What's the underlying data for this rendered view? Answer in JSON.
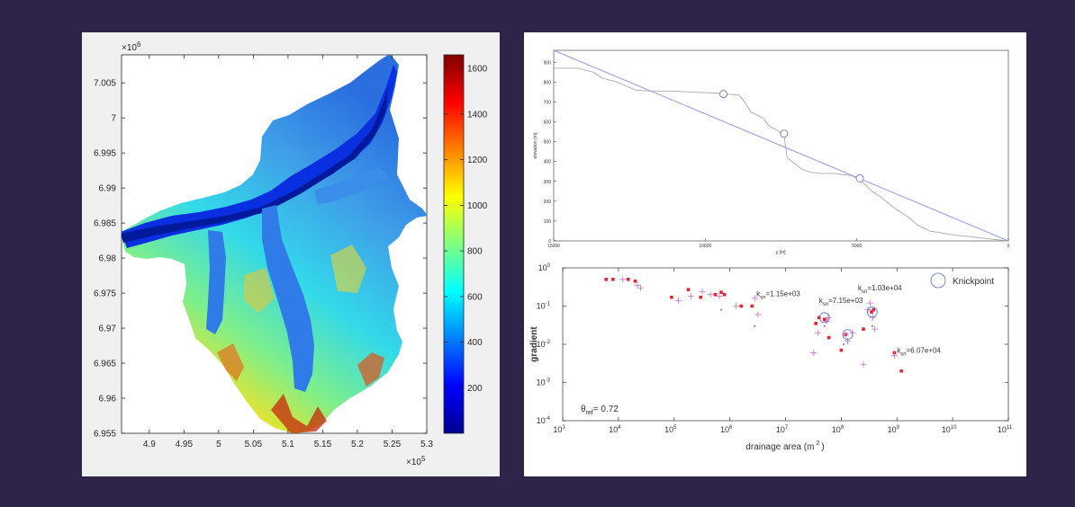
{
  "chart_data": [
    {
      "type": "heatmap",
      "x_exponent_label": "×10",
      "x_exponent": "5",
      "y_exponent_label": "×10",
      "y_exponent": "6",
      "x_ticks": [
        "4.9",
        "4.95",
        "5",
        "5.05",
        "5.1",
        "5.15",
        "5.2",
        "5.25",
        "5.3"
      ],
      "x_tick_values": [
        4.9,
        4.95,
        5.0,
        5.05,
        5.1,
        5.15,
        5.2,
        5.25,
        5.3
      ],
      "xlim": [
        4.86,
        5.3
      ],
      "y_ticks": [
        "7.005",
        "7",
        "6.995",
        "6.99",
        "6.985",
        "6.98",
        "6.975",
        "6.97",
        "6.965",
        "6.96",
        "6.955"
      ],
      "y_tick_values": [
        7.005,
        7.0,
        6.995,
        6.99,
        6.985,
        6.98,
        6.975,
        6.97,
        6.965,
        6.96,
        6.955
      ],
      "ylim": [
        6.955,
        7.009
      ],
      "colorbar": {
        "ticks": [
          "200",
          "400",
          "600",
          "800",
          "1000",
          "1200",
          "1400",
          "1600"
        ],
        "tick_values": [
          200,
          400,
          600,
          800,
          1000,
          1200,
          1400,
          1600
        ],
        "range": [
          0,
          1660
        ],
        "colormap": [
          "#00008f",
          "#0000ff",
          "#0080ff",
          "#00ffff",
          "#80ff80",
          "#ffff00",
          "#ff8000",
          "#ff0000",
          "#800000"
        ]
      }
    },
    {
      "type": "line",
      "xlabel": "χ [m]",
      "ylabel": "elevation (m)",
      "x_ticks": [
        "15000",
        "10000",
        "5000",
        "0"
      ],
      "x_tick_values": [
        15000,
        10000,
        5000,
        0
      ],
      "xlim": [
        15000,
        0
      ],
      "y_ticks": [
        "0",
        "100",
        "200",
        "300",
        "400",
        "500",
        "600",
        "700",
        "800",
        "900"
      ],
      "y_tick_values": [
        0,
        100,
        200,
        300,
        400,
        500,
        600,
        700,
        800,
        900
      ],
      "ylim": [
        0,
        960
      ],
      "series": [
        {
          "color": "#aaaaaa",
          "x": [
            15000,
            14200,
            13700,
            13400,
            12900,
            12300,
            11800,
            11000,
            10500,
            9700,
            9300,
            8900,
            8700,
            8500,
            8100,
            7900,
            7600,
            7500,
            7400,
            7300,
            6800,
            6500,
            6200,
            5800,
            5500,
            5200,
            4900,
            4500,
            4200,
            3800,
            3300,
            3000,
            2600,
            2200,
            1800,
            1200,
            600,
            0
          ],
          "y": [
            870,
            870,
            850,
            820,
            800,
            760,
            755,
            755,
            750,
            745,
            740,
            735,
            700,
            650,
            620,
            580,
            555,
            540,
            530,
            420,
            360,
            345,
            340,
            340,
            335,
            330,
            310,
            250,
            220,
            170,
            120,
            80,
            50,
            40,
            30,
            20,
            10,
            0
          ]
        },
        {
          "color": "#8f9be0",
          "x": [
            15000,
            0
          ],
          "y": [
            960,
            0
          ]
        }
      ],
      "knickpoints": [
        {
          "x": 9400,
          "y": 740
        },
        {
          "x": 7400,
          "y": 540
        },
        {
          "x": 4900,
          "y": 315
        }
      ]
    },
    {
      "type": "scatter",
      "xlabel": "drainage area (m",
      "xlabel_sup": "2",
      "xlabel_close": ")",
      "ylabel": "gradient",
      "x_scale": "log",
      "y_scale": "log",
      "x_tick_exponents": [
        "3",
        "4",
        "5",
        "6",
        "7",
        "8",
        "9",
        "10",
        "11"
      ],
      "xlim": [
        1000,
        100000000000
      ],
      "y_tick_exponents": [
        "0",
        "-1",
        "-2",
        "-3",
        "-4"
      ],
      "ylim": [
        0.0001,
        1
      ],
      "legend": {
        "label": "Knickpoint",
        "position": "top-right"
      },
      "theta": {
        "symbol": "θ",
        "sub": "ref",
        "value": "= 0.72"
      },
      "ksn_labels": [
        {
          "value": "=1.15e+03",
          "x": 3000000,
          "y": 0.18
        },
        {
          "value": "=7.15e+03",
          "x": 40000000,
          "y": 0.12
        },
        {
          "value": "=1.03e+04",
          "x": 200000000,
          "y": 0.26
        },
        {
          "value": "=6.07e+04",
          "x": 1000000000,
          "y": 0.006
        }
      ],
      "series": [
        {
          "marker": "square",
          "color": "#e8232e",
          "x": [
            6000,
            8000,
            15000,
            20000,
            90000,
            180000,
            300000,
            550000,
            700000,
            800000,
            1600000,
            2500000,
            35000000,
            40000000,
            50000000,
            60000000,
            100000000,
            120000000,
            250000000,
            350000000,
            380000000,
            900000000,
            1200000000
          ],
          "y": [
            0.5,
            0.5,
            0.5,
            0.45,
            0.17,
            0.27,
            0.17,
            0.2,
            0.23,
            0.2,
            0.1,
            0.1,
            0.035,
            0.05,
            0.045,
            0.015,
            0.007,
            0.018,
            0.025,
            0.07,
            0.08,
            0.006,
            0.002
          ]
        },
        {
          "marker": "plus",
          "color": "#c86fc8",
          "x": [
            12000,
            22000,
            25000,
            120000,
            200000,
            320000,
            450000,
            650000,
            1300000,
            2800000,
            3200000,
            32000000,
            38000000,
            55000000,
            58000000,
            120000000,
            130000000,
            160000000,
            250000000,
            300000000,
            330000000,
            370000000,
            400000000,
            900000000
          ],
          "y": [
            0.5,
            0.35,
            0.3,
            0.14,
            0.18,
            0.24,
            0.2,
            0.18,
            0.1,
            0.16,
            0.06,
            0.006,
            0.02,
            0.04,
            0.05,
            0.018,
            0.012,
            0.02,
            0.003,
            0.08,
            0.12,
            0.05,
            0.025,
            0.005
          ]
        },
        {
          "marker": "dot",
          "color": "#5a6ec8",
          "x": [
            700000,
            2800000,
            50000000,
            110000000,
            360000000
          ],
          "y": [
            0.08,
            0.03,
            0.03,
            0.01,
            0.03
          ]
        }
      ],
      "knickpoints": [
        {
          "x": 50000000,
          "y": 0.05
        },
        {
          "x": 130000000,
          "y": 0.018
        },
        {
          "x": 360000000,
          "y": 0.07
        }
      ]
    }
  ]
}
